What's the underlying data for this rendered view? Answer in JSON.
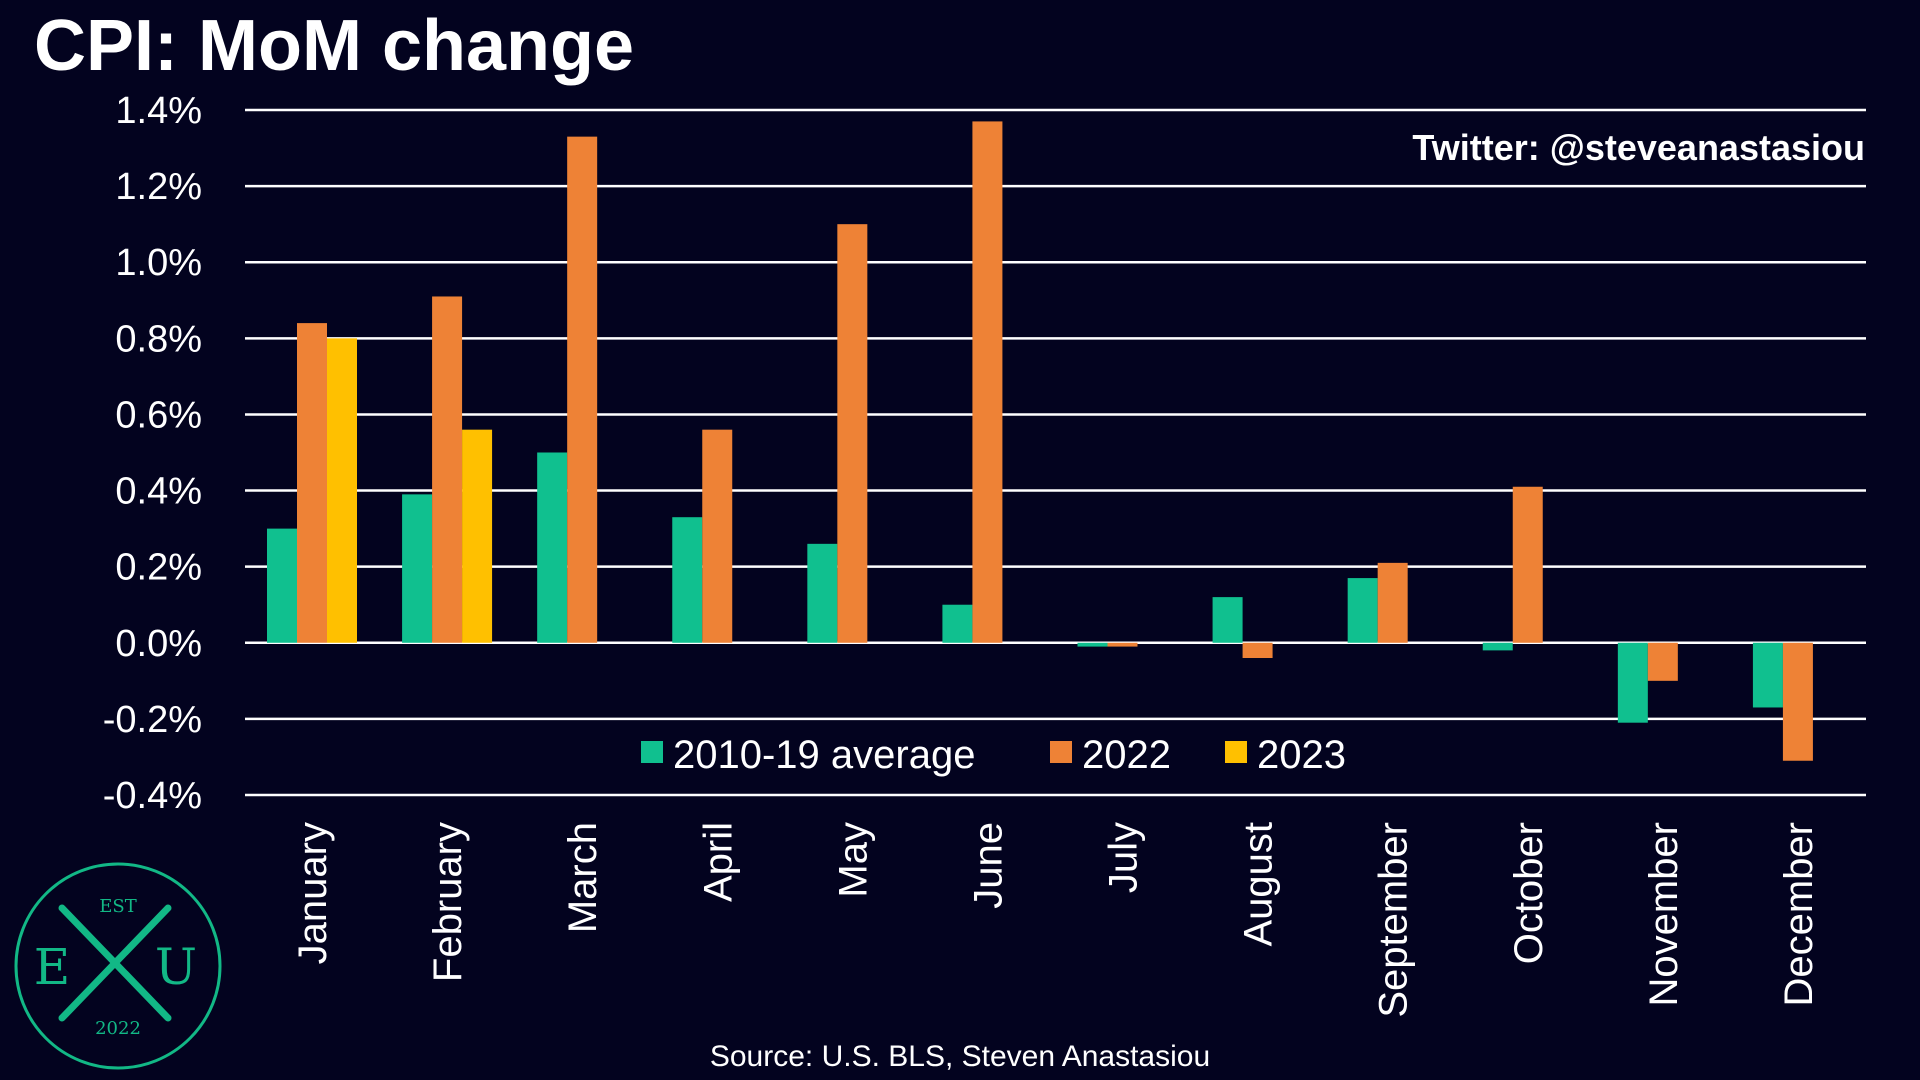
{
  "title": "CPI: MoM change",
  "colors": {
    "background": "#03031f",
    "grid": "#ffffff",
    "avg": "#10c08f",
    "y2022": "#ee8236",
    "y2023": "#ffc000",
    "logo": "#12b886"
  },
  "chart_data": {
    "type": "bar",
    "title": "CPI: MoM change",
    "categories": [
      "January",
      "February",
      "March",
      "April",
      "May",
      "June",
      "July",
      "August",
      "September",
      "October",
      "November",
      "December"
    ],
    "series": [
      {
        "name": "2010-19 average",
        "color": "#10c08f",
        "values": [
          0.3,
          0.39,
          0.5,
          0.33,
          0.26,
          0.1,
          -0.01,
          0.12,
          0.17,
          -0.02,
          -0.21,
          -0.17
        ]
      },
      {
        "name": "2022",
        "color": "#ee8236",
        "values": [
          0.84,
          0.91,
          1.33,
          0.56,
          1.1,
          1.37,
          -0.01,
          -0.04,
          0.21,
          0.41,
          -0.1,
          -0.31
        ]
      },
      {
        "name": "2023",
        "color": "#ffc000",
        "values": [
          0.8,
          0.56,
          null,
          null,
          null,
          null,
          null,
          null,
          null,
          null,
          null,
          null
        ]
      }
    ],
    "ylim": [
      -0.4,
      1.4
    ],
    "yticks": [
      1.4,
      1.2,
      1.0,
      0.8,
      0.6,
      0.4,
      0.2,
      0.0,
      -0.2,
      -0.4
    ],
    "ytick_labels": [
      "1.4%",
      "1.2%",
      "1.0%",
      "0.8%",
      "0.6%",
      "0.4%",
      "0.2%",
      "0.0%",
      "-0.2%",
      "-0.4%"
    ],
    "grid": true,
    "legend_position": "bottom-center",
    "xlabel": "",
    "ylabel": ""
  },
  "annotation": "Twitter: @steveanastasiou",
  "source": "Source: U.S. BLS, Steven Anastasiou",
  "logo": {
    "top": "EST",
    "left_letter": "E",
    "right_letter": "U",
    "bottom": "2022"
  }
}
